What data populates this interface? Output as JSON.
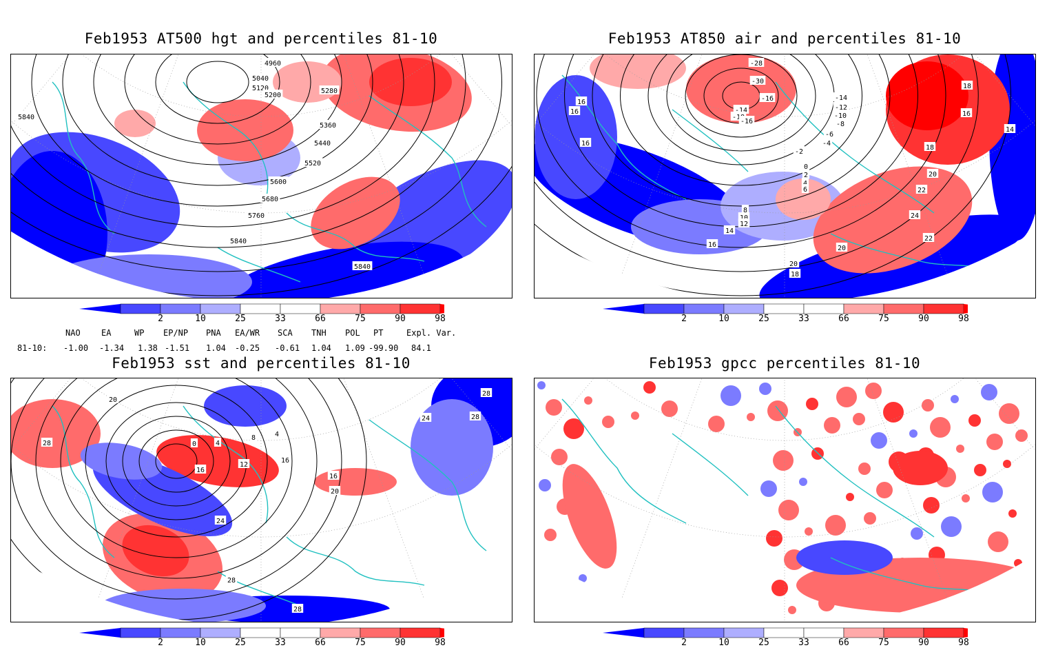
{
  "panels": [
    {
      "id": "p1",
      "title": "Feb1953 AT500 hgt and percentiles 81-10",
      "contour_labels": [
        "4960",
        "5040",
        "5120",
        "5200",
        "5280",
        "5360",
        "5440",
        "5520",
        "5600",
        "5680",
        "5760",
        "5840",
        "5840",
        "5840"
      ]
    },
    {
      "id": "p2",
      "title": "Feb1953 AT850 air and percentiles 81-10",
      "contour_labels": [
        "-28",
        "-30",
        "-16",
        "-14",
        "-18",
        "-16",
        "-14",
        "-12",
        "-10",
        "-8",
        "-6",
        "-4",
        "-2",
        "0",
        "2",
        "4",
        "6",
        "8",
        "10",
        "12",
        "14",
        "16",
        "16",
        "16",
        "16",
        "18",
        "18",
        "14",
        "20",
        "22",
        "24",
        "20",
        "22",
        "20",
        "18",
        "16"
      ]
    },
    {
      "id": "p3",
      "title": "Feb1953 sst and percentiles 81-10",
      "contour_labels": [
        "20",
        "28",
        "0",
        "4",
        "8",
        "4",
        "12",
        "16",
        "16",
        "16",
        "20",
        "24",
        "28",
        "28",
        "28",
        "24",
        "28"
      ]
    },
    {
      "id": "p4",
      "title": "Feb1953 gpcc percentiles 81-10",
      "contour_labels": []
    }
  ],
  "colorbar": {
    "ticks": [
      "2",
      "10",
      "25",
      "33",
      "66",
      "75",
      "90",
      "98"
    ],
    "colors": {
      "b1": "#0000ff",
      "b2": "#4848ff",
      "b3": "#7b7bff",
      "b4": "#aeaeff",
      "white": "#ffffff",
      "r1": "#ffa9a9",
      "r2": "#ff6b6b",
      "r3": "#ff3333",
      "r4": "#ff0000"
    }
  },
  "indices": {
    "names": [
      "NAO",
      "EA",
      "WP",
      "EP/NP",
      "PNA",
      "EA/WR",
      "SCA",
      "TNH",
      "POL",
      "PT",
      "Expl. Var."
    ],
    "row_label": "81-10:",
    "values": [
      "-1.00",
      "-1.34",
      "1.38",
      "-1.51",
      "1.04",
      "-0.25",
      "-0.61",
      "1.04",
      "1.09",
      "-99.90",
      "84.1"
    ]
  },
  "style": {
    "coast": "#20c0c0",
    "contour": "#000000",
    "grid": "#999999"
  }
}
